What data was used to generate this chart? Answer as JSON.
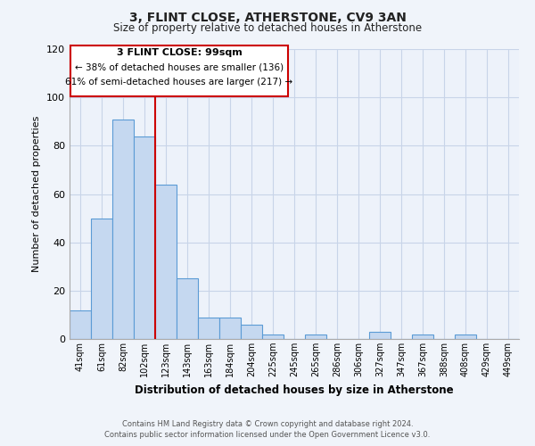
{
  "title": "3, FLINT CLOSE, ATHERSTONE, CV9 3AN",
  "subtitle": "Size of property relative to detached houses in Atherstone",
  "xlabel": "Distribution of detached houses by size in Atherstone",
  "ylabel": "Number of detached properties",
  "bar_labels": [
    "41sqm",
    "61sqm",
    "82sqm",
    "102sqm",
    "123sqm",
    "143sqm",
    "163sqm",
    "184sqm",
    "204sqm",
    "225sqm",
    "245sqm",
    "265sqm",
    "286sqm",
    "306sqm",
    "327sqm",
    "347sqm",
    "367sqm",
    "388sqm",
    "408sqm",
    "429sqm",
    "449sqm"
  ],
  "bar_values": [
    12,
    50,
    91,
    84,
    64,
    25,
    9,
    9,
    6,
    2,
    0,
    2,
    0,
    0,
    3,
    0,
    2,
    0,
    2,
    0,
    0
  ],
  "bar_color": "#c5d8f0",
  "bar_edge_color": "#5b9bd5",
  "vline_color": "#cc0000",
  "annotation_title": "3 FLINT CLOSE: 99sqm",
  "annotation_line1": "← 38% of detached houses are smaller (136)",
  "annotation_line2": "61% of semi-detached houses are larger (217) →",
  "annotation_box_color": "#ffffff",
  "annotation_box_edge": "#cc0000",
  "ylim": [
    0,
    120
  ],
  "yticks": [
    0,
    20,
    40,
    60,
    80,
    100,
    120
  ],
  "footer_line1": "Contains HM Land Registry data © Crown copyright and database right 2024.",
  "footer_line2": "Contains public sector information licensed under the Open Government Licence v3.0.",
  "bg_color": "#f0f4fa",
  "plot_bg_color": "#edf2fa",
  "grid_color": "#c8d4e8"
}
